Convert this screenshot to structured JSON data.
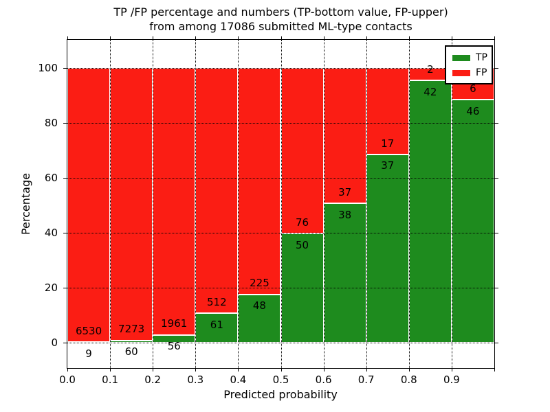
{
  "figure": {
    "title_line1": "TP /FP percentage and numbers (TP-bottom value, FP-upper)",
    "title_line2": "from among 17086 submitted ML-type contacts"
  },
  "axes": {
    "xlabel": "Predicted probability",
    "ylabel": "Percentage",
    "xtick_labels": [
      "0.0",
      "0.1",
      "0.2",
      "0.3",
      "0.4",
      "0.5",
      "0.6",
      "0.7",
      "0.8",
      "0.9"
    ],
    "ytick_labels": [
      "0",
      "20",
      "40",
      "60",
      "80",
      "100"
    ],
    "ytick_values": [
      0,
      20,
      40,
      60,
      80,
      100
    ]
  },
  "legend": {
    "items": [
      {
        "label": "TP",
        "color": "#1e8b1e"
      },
      {
        "label": "FP",
        "color": "#fb1d14"
      }
    ]
  },
  "colors": {
    "tp": "#1e8b1e",
    "fp": "#fb1d14",
    "bar_edge": "#ffffff",
    "grid": "#000000"
  },
  "chart_data": {
    "type": "bar",
    "stacked": true,
    "normalized_to_percent": 100,
    "title": "TP /FP percentage and numbers (TP-bottom value, FP-upper) from among 17086 submitted ML-type contacts",
    "xlabel": "Predicted probability",
    "ylabel": "Percentage",
    "total_contacts": 17086,
    "bin_starts": [
      0.0,
      0.1,
      0.2,
      0.3,
      0.4,
      0.5,
      0.6,
      0.7,
      0.8,
      0.9
    ],
    "bin_width": 0.1,
    "series": [
      {
        "name": "TP",
        "counts": [
          9,
          60,
          56,
          61,
          48,
          50,
          38,
          37,
          42,
          46
        ]
      },
      {
        "name": "FP",
        "counts": [
          6530,
          7273,
          1961,
          512,
          225,
          76,
          37,
          17,
          2,
          6
        ]
      }
    ],
    "tp_percent_of_bin": [
      0.14,
      0.82,
      2.78,
      10.65,
      17.58,
      39.68,
      50.67,
      68.52,
      95.45,
      88.46
    ],
    "xlim": [
      0.0,
      1.0
    ],
    "ylim": [
      -9.3,
      110.3
    ],
    "grid": true,
    "legend_position": "upper right"
  }
}
